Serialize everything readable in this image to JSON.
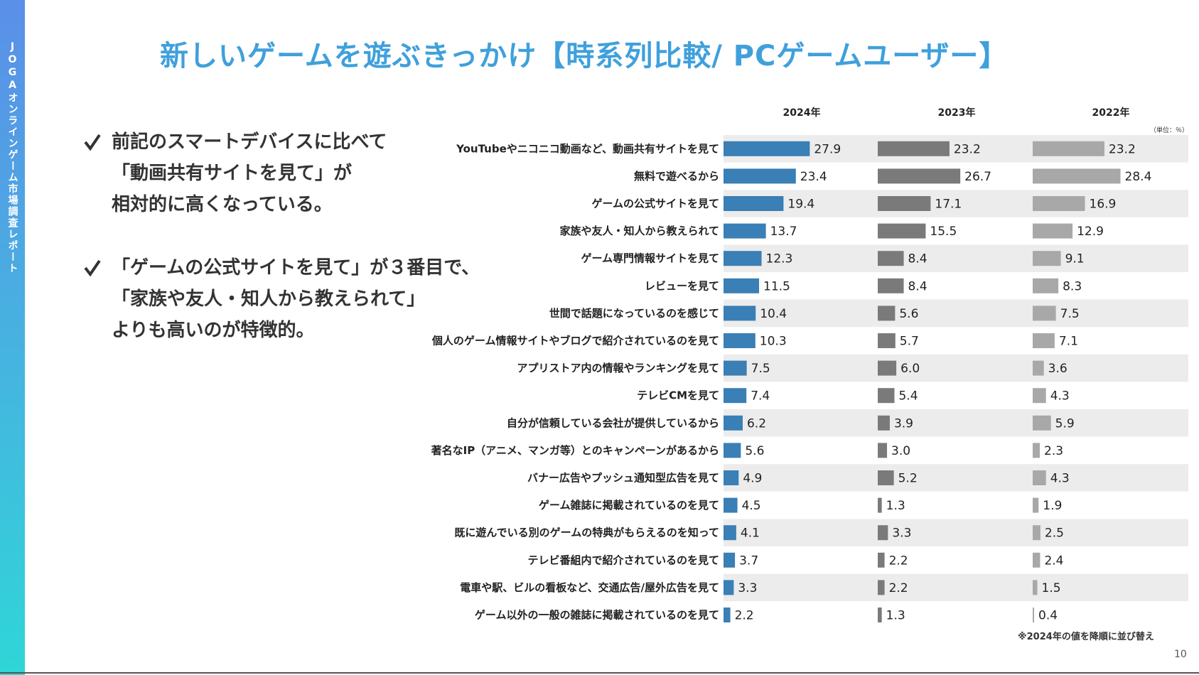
{
  "sidebar": {
    "text": "JOGAオンラインゲーム市場調査レポート"
  },
  "title": "新しいゲームを遊ぶきっかけ【時系列比較/ PCゲームユーザー】",
  "bullets": [
    {
      "lines": [
        "前記のスマートデバイスに比べて",
        "「動画共有サイトを見て」が",
        "相対的に高くなっている。"
      ]
    },
    {
      "lines": [
        "「ゲームの公式サイトを見て」が３番目で、",
        "「家族や友人・知人から教えられて」",
        "よりも高いのが特徴的。"
      ]
    }
  ],
  "check_icon": "check-mark",
  "unit": "（単位：％）",
  "footnote": "※2024年の値を降順に並び替え",
  "page_number": "10",
  "colors": {
    "accent": "#3fa0dc",
    "bar_2024": "#3a7fb5",
    "bar_2023": "#7a7a7a",
    "bar_2022": "#a8a8a8",
    "row_band": "#ececec"
  },
  "chart_data": {
    "type": "bar",
    "orientation": "horizontal",
    "categories": [
      "YouTubeやニコニコ動画など、動画共有サイトを見て",
      "無料で遊べるから",
      "ゲームの公式サイトを見て",
      "家族や友人・知人から教えられて",
      "ゲーム専門情報サイトを見て",
      "レビューを見て",
      "世間で話題になっているのを感じて",
      "個人のゲーム情報サイトやブログで紹介されているのを見て",
      "アプリストア内の情報やランキングを見て",
      "テレビCMを見て",
      "自分が信頼している会社が提供しているから",
      "著名なIP（アニメ、マンガ等）とのキャンペーンがあるから",
      "バナー広告やプッシュ通知型広告を見て",
      "ゲーム雑誌に掲載されているのを見て",
      "既に遊んでいる別のゲームの特典がもらえるのを知って",
      "テレビ番組内で紹介されているのを見て",
      "電車や駅、ビルの看板など、交通広告/屋外広告を見て",
      "ゲーム以外の一般の雑誌に掲載されているのを見て"
    ],
    "series": [
      {
        "name": "2024年",
        "values": [
          "27.9",
          "23.4",
          "19.4",
          "13.7",
          "12.3",
          "11.5",
          "10.4",
          "10.3",
          "7.5",
          "7.4",
          "6.2",
          "5.6",
          "4.9",
          "4.5",
          "4.1",
          "3.7",
          "3.3",
          "2.2"
        ]
      },
      {
        "name": "2023年",
        "values": [
          "23.2",
          "26.7",
          "17.1",
          "15.5",
          "8.4",
          "8.4",
          "5.6",
          "5.7",
          "6.0",
          "5.4",
          "3.9",
          "3.0",
          "5.2",
          "1.3",
          "3.3",
          "2.2",
          "2.2",
          "1.3"
        ]
      },
      {
        "name": "2022年",
        "values": [
          "23.2",
          "28.4",
          "16.9",
          "12.9",
          "9.1",
          "8.3",
          "7.5",
          "7.1",
          "3.6",
          "4.3",
          "5.9",
          "2.3",
          "4.3",
          "1.9",
          "2.5",
          "2.4",
          "1.5",
          "0.4"
        ]
      }
    ],
    "unit": "%",
    "grid": false,
    "legend": "top"
  }
}
